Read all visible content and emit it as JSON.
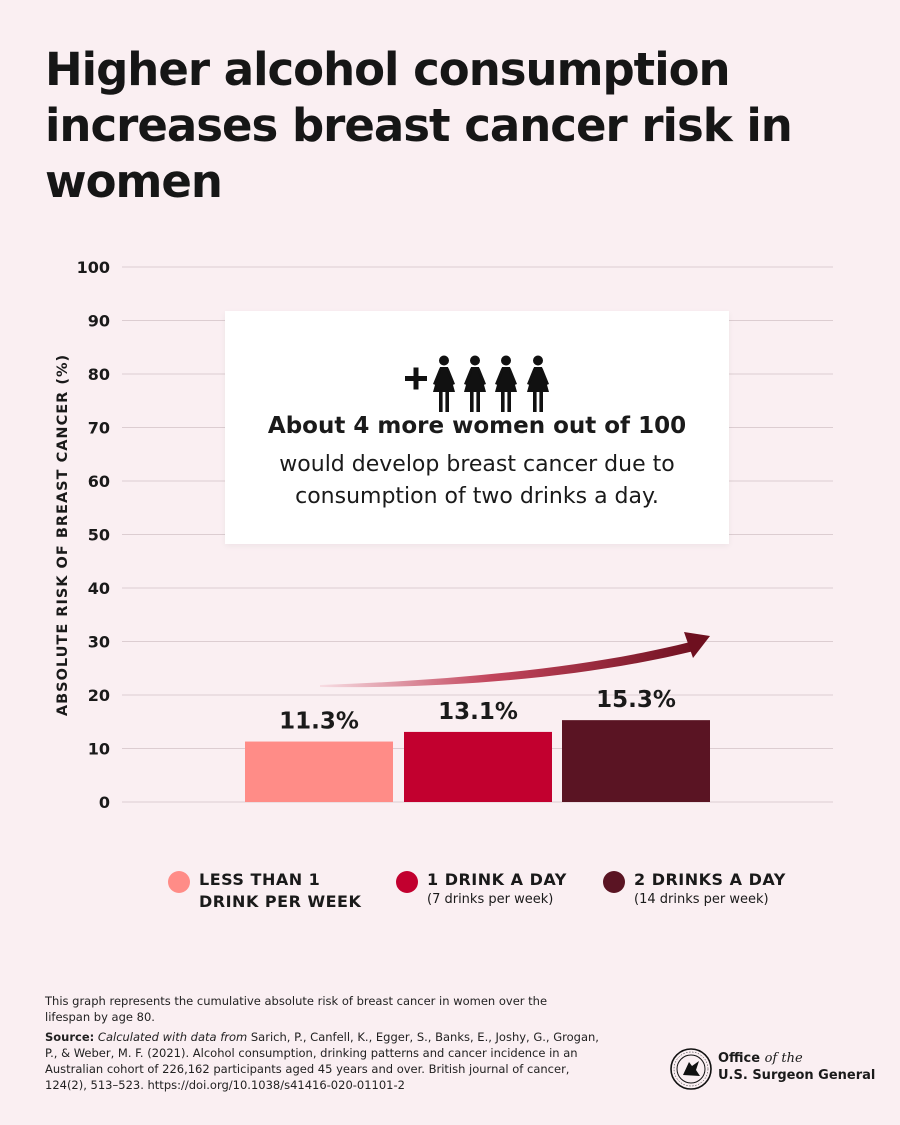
{
  "colors": {
    "background": "#faeff2",
    "bar1": "#ff8c87",
    "bar2": "#c2002f",
    "bar3": "#5a1423",
    "arrow": "#6e0f1f",
    "grid": "#dccdd1"
  },
  "title": "Higher alcohol consumption increases breast cancer risk in women",
  "callout": {
    "icon": "plus-four-women-icon",
    "bold": "About 4 more women out of 100",
    "text": "would develop breast cancer due to consumption of two drinks a day."
  },
  "legend": [
    {
      "label": "LESS THAN 1",
      "label2": "DRINK PER WEEK",
      "sub": ""
    },
    {
      "label": "1 DRINK A DAY",
      "label2": "",
      "sub": "(7 drinks per week)"
    },
    {
      "label": "2 DRINKS A DAY",
      "label2": "",
      "sub": "(14 drinks per week)"
    }
  ],
  "note": "This graph represents the cumulative absolute risk of breast cancer in women over the lifespan by age 80.",
  "source": {
    "label": "Source:",
    "italic": "Calculated with data from",
    "text": "Sarich, P., Canfell, K., Egger, S., Banks, E., Joshy, G., Grogan, P., & Weber, M. F. (2021). Alcohol consumption, drinking patterns and cancer incidence in an Australian cohort of 226,162 participants aged 45 years and over. British journal of cancer, 124(2), 513–523. https://doi.org/10.1038/s41416-020-01101-2"
  },
  "logo": {
    "line1_a": "Office",
    "line1_b": "of the",
    "line2": "U.S. Surgeon General"
  },
  "chart_data": {
    "type": "bar",
    "categories": [
      "LESS THAN 1 DRINK PER WEEK",
      "1 DRINK A DAY",
      "2 DRINKS A DAY"
    ],
    "values": [
      11.3,
      13.1,
      15.3
    ],
    "data_labels": [
      "11.3%",
      "13.1%",
      "15.3%"
    ],
    "colors": [
      "#ff8c87",
      "#c2002f",
      "#5a1423"
    ],
    "ylabel": "ABSOLUTE RISK OF BREAST CANCER (%)",
    "ylim": [
      0,
      100
    ],
    "yticks": [
      0,
      10,
      20,
      30,
      40,
      50,
      60,
      70,
      80,
      90,
      100
    ],
    "grid": true,
    "legend": "bottom"
  }
}
